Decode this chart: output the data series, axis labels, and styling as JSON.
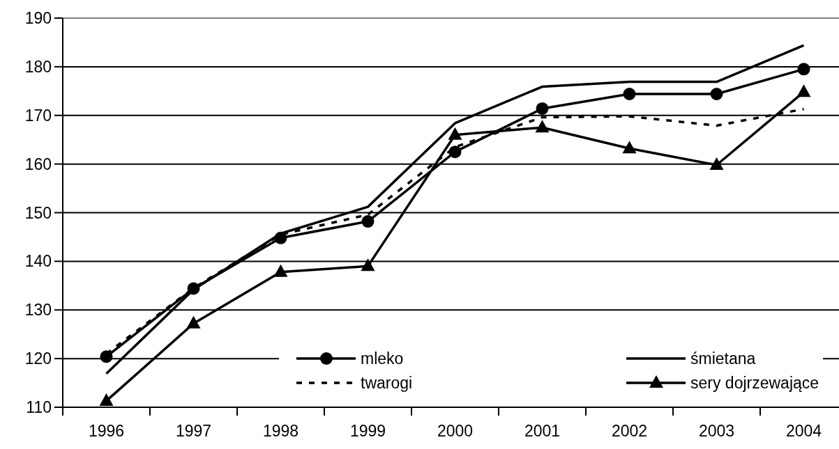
{
  "chart_data": {
    "type": "line",
    "categories": [
      "1996",
      "1997",
      "1998",
      "1999",
      "2000",
      "2001",
      "2002",
      "2003",
      "2004"
    ],
    "series": [
      {
        "name": "mleko",
        "color": "#000000",
        "marker": "circle",
        "line_style": "solid",
        "values": [
          120.4,
          134.4,
          144.8,
          148.2,
          162.5,
          171.4,
          174.4,
          174.4,
          179.5
        ]
      },
      {
        "name": "śmietana",
        "color": "#000000",
        "marker": "none",
        "line_style": "solid",
        "values": [
          116.9,
          134.2,
          145.7,
          151.2,
          168.4,
          175.9,
          176.9,
          176.9,
          184.4
        ]
      },
      {
        "name": "twarogi",
        "color": "#000000",
        "marker": "none",
        "line_style": "dashed",
        "values": [
          121,
          134.5,
          145.5,
          149.6,
          163.5,
          169.6,
          169.8,
          167.9,
          171.3
        ]
      },
      {
        "name": "sery dojrzewające",
        "color": "#000000",
        "marker": "triangle",
        "line_style": "solid",
        "values": [
          111.3,
          127.2,
          137.8,
          139,
          166,
          167.5,
          163.2,
          159.8,
          174.8
        ]
      }
    ],
    "ylim": [
      110,
      190
    ],
    "yticks": [
      110,
      120,
      130,
      140,
      150,
      160,
      170,
      180,
      190
    ],
    "grid": "y",
    "legend": "bottom"
  }
}
